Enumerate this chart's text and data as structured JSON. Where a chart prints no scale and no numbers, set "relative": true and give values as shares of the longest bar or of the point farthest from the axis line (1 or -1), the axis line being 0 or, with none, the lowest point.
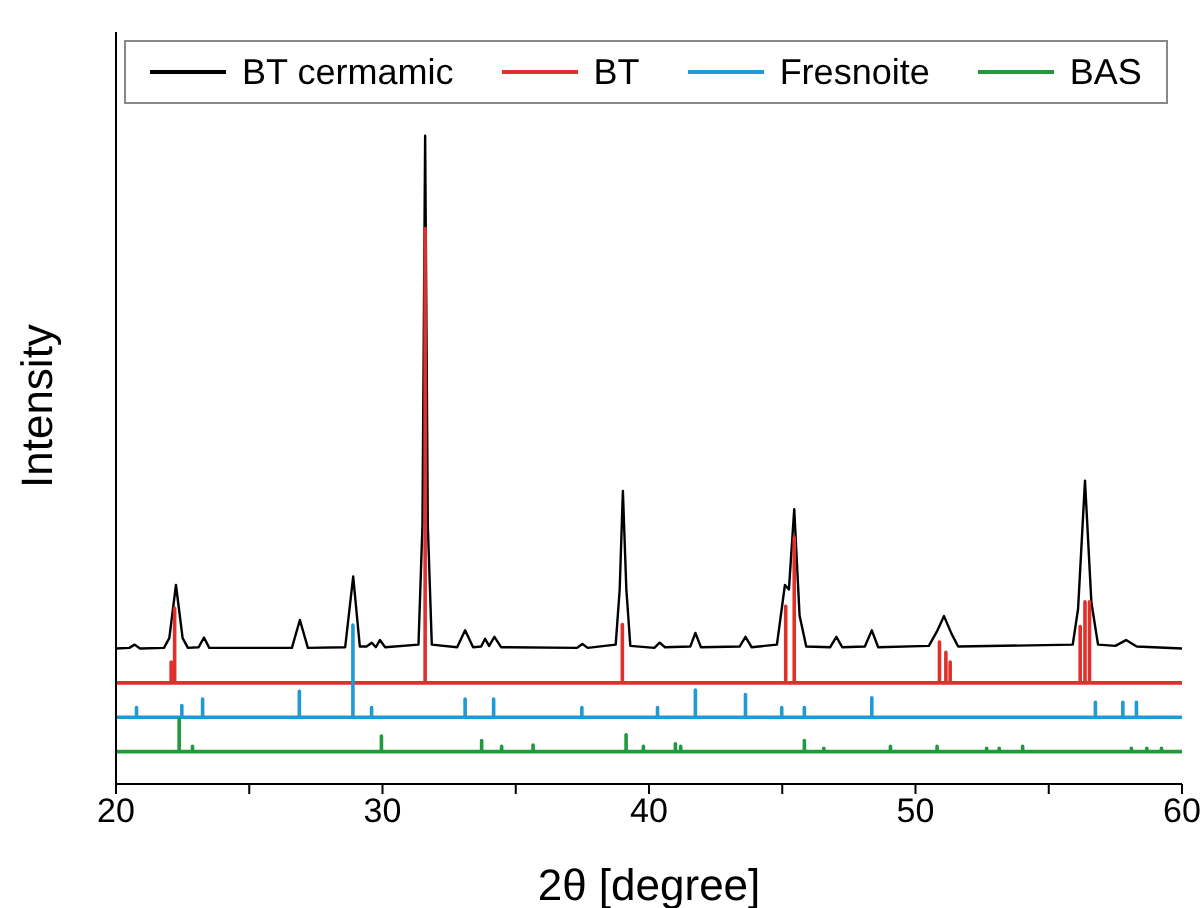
{
  "chart_data": {
    "type": "line",
    "relative": true,
    "xlabel": "2θ [degree]",
    "ylabel": "Intensity",
    "xlim": [
      20,
      60
    ],
    "xticks": [
      20,
      {
        "value": 25,
        "label": null
      },
      30,
      {
        "value": 35,
        "label": null
      },
      40,
      {
        "value": 45,
        "label": null
      },
      50,
      {
        "value": 55,
        "label": null
      },
      60
    ],
    "legend": "top",
    "series": [
      {
        "name": "BT cermamic",
        "color": "#000000",
        "x": [
          20,
          20.5,
          20.7,
          20.9,
          21.8,
          22.0,
          22.25,
          22.5,
          22.7,
          23.1,
          23.3,
          23.5,
          26.6,
          26.9,
          27.2,
          28.6,
          28.9,
          29.15,
          29.4,
          29.6,
          29.75,
          29.9,
          30.1,
          31.35,
          31.5,
          31.6,
          31.7,
          31.85,
          32.8,
          33.1,
          33.4,
          33.7,
          33.85,
          34.0,
          34.2,
          34.45,
          37.3,
          37.5,
          37.7,
          38.75,
          38.9,
          39.02,
          39.15,
          39.3,
          40.2,
          40.4,
          40.6,
          41.55,
          41.74,
          41.95,
          43.4,
          43.62,
          43.85,
          44.8,
          45.1,
          45.25,
          45.45,
          45.65,
          45.9,
          46.8,
          47.03,
          47.25,
          48.1,
          48.36,
          48.6,
          50.5,
          50.8,
          51.07,
          51.35,
          51.6,
          55.9,
          56.1,
          56.36,
          56.6,
          56.85,
          57.5,
          57.9,
          58.3,
          60
        ],
        "values": [
          0.209,
          0.21,
          0.215,
          0.209,
          0.21,
          0.225,
          0.307,
          0.225,
          0.21,
          0.211,
          0.226,
          0.21,
          0.21,
          0.253,
          0.21,
          0.211,
          0.32,
          0.212,
          0.212,
          0.218,
          0.211,
          0.222,
          0.211,
          0.215,
          0.4,
          1.0,
          0.4,
          0.215,
          0.211,
          0.237,
          0.211,
          0.212,
          0.224,
          0.213,
          0.227,
          0.211,
          0.21,
          0.216,
          0.21,
          0.215,
          0.3,
          0.452,
          0.3,
          0.213,
          0.21,
          0.218,
          0.211,
          0.212,
          0.233,
          0.211,
          0.212,
          0.227,
          0.211,
          0.215,
          0.307,
          0.3,
          0.424,
          0.26,
          0.212,
          0.211,
          0.227,
          0.211,
          0.212,
          0.237,
          0.211,
          0.213,
          0.235,
          0.259,
          0.232,
          0.212,
          0.215,
          0.27,
          0.468,
          0.28,
          0.215,
          0.213,
          0.222,
          0.212,
          0.209
        ]
      },
      {
        "name": "BT",
        "type": "line",
        "color": "#e0302c",
        "x": [
          20,
          22.07,
          22.07,
          22.07,
          22.2,
          22.2,
          22.2,
          31.6,
          31.6,
          31.6,
          39.0,
          39.0,
          39.0,
          45.13,
          45.13,
          45.13,
          45.45,
          45.45,
          45.45,
          50.9,
          50.9,
          50.9,
          51.14,
          51.14,
          51.14,
          51.3,
          51.3,
          51.3,
          56.18,
          56.18,
          56.18,
          56.36,
          56.36,
          56.36,
          56.53,
          56.53,
          56.53,
          60
        ],
        "values": [
          0.156,
          0.156,
          0.188,
          0.156,
          0.156,
          0.271,
          0.156,
          0.156,
          0.857,
          0.156,
          0.156,
          0.246,
          0.156,
          0.156,
          0.274,
          0.156,
          0.156,
          0.38,
          0.156,
          0.156,
          0.219,
          0.156,
          0.156,
          0.203,
          0.156,
          0.156,
          0.188,
          0.156,
          0.156,
          0.243,
          0.156,
          0.156,
          0.281,
          0.156,
          0.156,
          0.281,
          0.156,
          0.156
        ]
      },
      {
        "name": "Fresnoite",
        "type": "line",
        "color": "#1e9ad6",
        "x": [
          20,
          20.77,
          20.77,
          20.77,
          22.47,
          22.47,
          22.47,
          23.25,
          23.25,
          23.25,
          26.88,
          26.88,
          26.88,
          28.89,
          28.89,
          28.89,
          29.59,
          29.59,
          29.59,
          33.1,
          33.1,
          33.1,
          34.17,
          34.17,
          34.17,
          37.48,
          37.48,
          37.48,
          40.32,
          40.32,
          40.32,
          41.74,
          41.74,
          41.74,
          43.62,
          43.62,
          43.62,
          44.98,
          44.98,
          44.98,
          45.83,
          45.83,
          45.83,
          48.36,
          48.36,
          48.36,
          56.75,
          56.75,
          56.75,
          57.78,
          57.78,
          57.78,
          58.29,
          58.29,
          58.29,
          60
        ],
        "values": [
          0.103,
          0.103,
          0.118,
          0.103,
          0.103,
          0.121,
          0.103,
          0.103,
          0.131,
          0.103,
          0.103,
          0.143,
          0.103,
          0.103,
          0.245,
          0.103,
          0.103,
          0.118,
          0.103,
          0.103,
          0.131,
          0.103,
          0.103,
          0.131,
          0.103,
          0.103,
          0.118,
          0.103,
          0.103,
          0.118,
          0.103,
          0.103,
          0.145,
          0.103,
          0.103,
          0.138,
          0.103,
          0.103,
          0.118,
          0.103,
          0.103,
          0.118,
          0.103,
          0.103,
          0.133,
          0.103,
          0.103,
          0.126,
          0.103,
          0.103,
          0.126,
          0.103,
          0.103,
          0.126,
          0.103,
          0.103
        ]
      },
      {
        "name": "BAS",
        "type": "line",
        "color": "#1f9a3c",
        "x": [
          20,
          22.37,
          22.37,
          22.37,
          22.87,
          22.87,
          22.87,
          29.96,
          29.96,
          29.96,
          33.72,
          33.72,
          33.72,
          34.47,
          34.47,
          34.47,
          35.65,
          35.65,
          35.65,
          39.14,
          39.14,
          39.14,
          39.79,
          39.79,
          39.79,
          40.99,
          40.99,
          40.99,
          41.19,
          41.19,
          41.19,
          45.83,
          45.83,
          45.83,
          46.56,
          46.56,
          46.56,
          49.06,
          49.06,
          49.06,
          50.81,
          50.81,
          50.81,
          52.67,
          52.67,
          52.67,
          53.14,
          53.14,
          53.14,
          54.02,
          54.02,
          54.02,
          58.1,
          58.1,
          58.1,
          58.68,
          58.68,
          58.68,
          59.23,
          59.23,
          59.23,
          60
        ],
        "values": [
          0.05,
          0.05,
          0.1,
          0.05,
          0.05,
          0.058,
          0.05,
          0.05,
          0.074,
          0.05,
          0.05,
          0.067,
          0.05,
          0.05,
          0.058,
          0.05,
          0.05,
          0.06,
          0.05,
          0.05,
          0.076,
          0.05,
          0.05,
          0.058,
          0.05,
          0.05,
          0.062,
          0.05,
          0.05,
          0.058,
          0.05,
          0.05,
          0.067,
          0.05,
          0.05,
          0.055,
          0.05,
          0.05,
          0.058,
          0.05,
          0.05,
          0.058,
          0.05,
          0.05,
          0.055,
          0.05,
          0.05,
          0.055,
          0.05,
          0.05,
          0.058,
          0.05,
          0.05,
          0.055,
          0.05,
          0.05,
          0.055,
          0.05,
          0.05,
          0.055,
          0.05,
          0.05
        ]
      }
    ]
  }
}
